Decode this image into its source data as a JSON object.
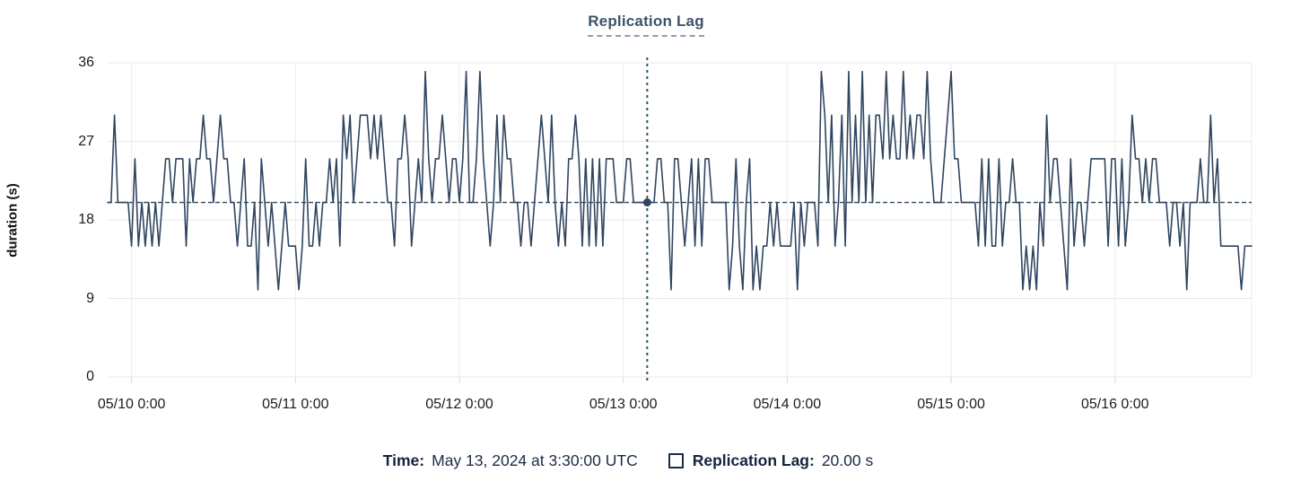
{
  "title": "Replication Lag",
  "chart_data": {
    "type": "line",
    "title": "Replication Lag",
    "xlabel": "",
    "ylabel": "duration (s)",
    "ylim": [
      0,
      36
    ],
    "y_ticks": [
      0,
      9,
      18,
      27,
      36
    ],
    "x_tick_labels": [
      "05/10 0:00",
      "05/11 0:00",
      "05/12 0:00",
      "05/13 0:00",
      "05/14 0:00",
      "05/15 0:00",
      "05/16 0:00"
    ],
    "x_tick_interval_hours": 24,
    "x_start_hours": -3.5,
    "x_interval_hours": 0.5,
    "grid": true,
    "legend_position": "bottom",
    "series": [
      {
        "name": "Replication Lag",
        "unit": "s",
        "color": "#2f4560",
        "values": [
          20,
          20,
          30,
          20,
          20,
          20,
          20,
          15,
          25,
          15,
          20,
          15,
          20,
          15,
          20,
          15,
          20,
          25,
          25,
          20,
          25,
          25,
          25,
          15,
          25,
          20,
          25,
          25,
          30,
          25,
          25,
          20,
          25,
          30,
          25,
          25,
          20,
          20,
          15,
          20,
          25,
          15,
          15,
          20,
          10,
          25,
          20,
          15,
          20,
          15,
          10,
          15,
          20,
          15,
          15,
          15,
          10,
          15,
          25,
          15,
          15,
          20,
          15,
          20,
          20,
          25,
          20,
          25,
          15,
          30,
          25,
          30,
          20,
          25,
          30,
          30,
          30,
          25,
          30,
          25,
          30,
          25,
          20,
          20,
          15,
          25,
          25,
          30,
          25,
          15,
          20,
          25,
          20,
          35,
          25,
          20,
          25,
          25,
          30,
          25,
          20,
          25,
          25,
          20,
          25,
          35,
          20,
          20,
          25,
          35,
          25,
          20,
          15,
          20,
          30,
          20,
          30,
          25,
          25,
          20,
          20,
          15,
          20,
          20,
          15,
          20,
          25,
          30,
          25,
          20,
          30,
          20,
          15,
          20,
          15,
          25,
          25,
          30,
          25,
          15,
          25,
          15,
          25,
          15,
          25,
          15,
          25,
          25,
          25,
          20,
          20,
          20,
          25,
          25,
          20,
          20,
          20,
          20,
          20,
          20,
          20,
          25,
          25,
          20,
          20,
          10,
          25,
          25,
          20,
          15,
          20,
          25,
          15,
          25,
          15,
          25,
          25,
          20,
          20,
          20,
          20,
          20,
          10,
          15,
          25,
          15,
          10,
          20,
          25,
          10,
          15,
          10,
          15,
          15,
          20,
          15,
          20,
          15,
          15,
          15,
          15,
          20,
          10,
          20,
          15,
          20,
          20,
          20,
          15,
          35,
          30,
          20,
          30,
          15,
          20,
          30,
          15,
          35,
          20,
          30,
          20,
          35,
          20,
          30,
          20,
          30,
          30,
          25,
          35,
          25,
          30,
          25,
          25,
          35,
          25,
          30,
          25,
          30,
          30,
          25,
          35,
          25,
          20,
          20,
          20,
          25,
          30,
          35,
          25,
          25,
          20,
          20,
          20,
          20,
          20,
          15,
          25,
          15,
          25,
          15,
          15,
          25,
          15,
          20,
          20,
          25,
          20,
          20,
          10,
          15,
          10,
          15,
          10,
          20,
          15,
          30,
          20,
          25,
          25,
          20,
          15,
          10,
          25,
          15,
          20,
          20,
          15,
          20,
          25,
          25,
          25,
          25,
          25,
          15,
          25,
          25,
          15,
          25,
          15,
          20,
          30,
          25,
          25,
          20,
          25,
          20,
          25,
          25,
          20,
          20,
          20,
          15,
          20,
          20,
          15,
          20,
          10,
          20,
          20,
          20,
          25,
          20,
          20,
          30,
          20,
          25,
          15,
          15,
          15,
          15,
          15,
          15,
          10,
          15,
          15,
          15
        ]
      }
    ],
    "crosshair": {
      "x_hours_after_first_tick": 75.5,
      "time_label": "May 13, 2024 at 3:30:00 UTC",
      "value": 20,
      "value_label": "20.00 s",
      "reference_line_value": 20
    }
  },
  "footer": {
    "time_label": "Time:",
    "time_value": "May 13, 2024 at 3:30:00 UTC",
    "series_label": "Replication Lag:",
    "series_value": "20.00 s"
  },
  "colors": {
    "series_line": "#2f4560",
    "title_text": "#3d5368",
    "crosshair": "#2e5363",
    "reference_dash": "#2f4a63",
    "gridline": "#e8e8e8",
    "axis_text": "#1c1c1c",
    "footer_text": "#15233f"
  }
}
